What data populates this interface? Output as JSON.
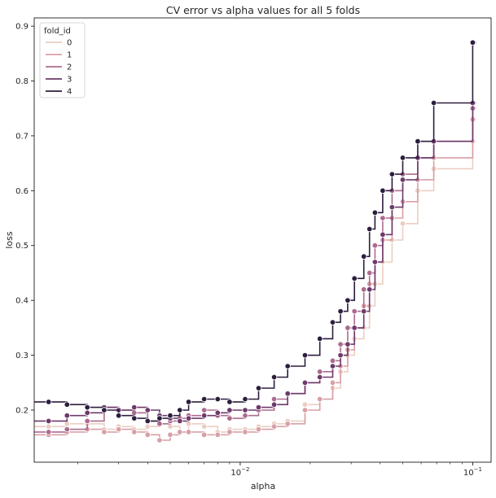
{
  "chart_data": {
    "type": "line",
    "title": "CV error vs alpha values for all 5 folds",
    "xlabel": "alpha",
    "ylabel": "loss",
    "xscale": "log",
    "xlim": [
      0.0013,
      0.12
    ],
    "ylim": [
      0.105,
      0.915
    ],
    "x_ticks": [
      {
        "value": 0.01,
        "base": "10",
        "exp": "−2"
      },
      {
        "value": 0.1,
        "base": "10",
        "exp": "−1"
      }
    ],
    "y_ticks": [
      0.2,
      0.3,
      0.4,
      0.5,
      0.6,
      0.7,
      0.8,
      0.9
    ],
    "grid": false,
    "drawstyle": "steps-post",
    "markers": true,
    "legend": {
      "title": "fold_id",
      "placement": "top-left"
    },
    "series": [
      {
        "name": "0",
        "color": "#ebcec3",
        "x": [
          0.0015,
          0.0018,
          0.0022,
          0.0026,
          0.003,
          0.0035,
          0.004,
          0.0045,
          0.005,
          0.0055,
          0.006,
          0.007,
          0.008,
          0.009,
          0.0105,
          0.012,
          0.014,
          0.016,
          0.019,
          0.022,
          0.025,
          0.027,
          0.029,
          0.031,
          0.034,
          0.036,
          0.038,
          0.041,
          0.045,
          0.05,
          0.058,
          0.068,
          0.1
        ],
        "y": [
          0.17,
          0.175,
          0.175,
          0.165,
          0.17,
          0.165,
          0.17,
          0.175,
          0.17,
          0.16,
          0.175,
          0.17,
          0.16,
          0.165,
          0.165,
          0.17,
          0.175,
          0.18,
          0.21,
          0.22,
          0.24,
          0.27,
          0.3,
          0.33,
          0.35,
          0.39,
          0.43,
          0.47,
          0.51,
          0.54,
          0.6,
          0.64,
          0.69
        ]
      },
      {
        "name": "1",
        "color": "#d89fa6",
        "x": [
          0.0015,
          0.0018,
          0.0022,
          0.0026,
          0.003,
          0.0035,
          0.004,
          0.0045,
          0.005,
          0.0055,
          0.006,
          0.007,
          0.008,
          0.009,
          0.0105,
          0.012,
          0.014,
          0.016,
          0.019,
          0.022,
          0.025,
          0.027,
          0.029,
          0.031,
          0.034,
          0.036,
          0.038,
          0.041,
          0.045,
          0.05,
          0.058,
          0.068,
          0.1
        ],
        "y": [
          0.155,
          0.16,
          0.165,
          0.16,
          0.165,
          0.16,
          0.155,
          0.145,
          0.155,
          0.16,
          0.16,
          0.155,
          0.155,
          0.16,
          0.16,
          0.165,
          0.17,
          0.175,
          0.2,
          0.22,
          0.25,
          0.28,
          0.31,
          0.35,
          0.39,
          0.43,
          0.47,
          0.51,
          0.55,
          0.58,
          0.62,
          0.66,
          0.73
        ]
      },
      {
        "name": "2",
        "color": "#ad6b8f",
        "x": [
          0.0015,
          0.0018,
          0.0022,
          0.0026,
          0.003,
          0.0035,
          0.004,
          0.0045,
          0.005,
          0.0055,
          0.006,
          0.007,
          0.008,
          0.009,
          0.0105,
          0.012,
          0.014,
          0.016,
          0.019,
          0.022,
          0.025,
          0.027,
          0.029,
          0.031,
          0.034,
          0.036,
          0.038,
          0.041,
          0.045,
          0.05,
          0.058,
          0.068,
          0.1
        ],
        "y": [
          0.16,
          0.165,
          0.18,
          0.205,
          0.2,
          0.195,
          0.18,
          0.175,
          0.18,
          0.185,
          0.19,
          0.2,
          0.19,
          0.185,
          0.19,
          0.2,
          0.22,
          0.23,
          0.25,
          0.27,
          0.29,
          0.32,
          0.35,
          0.38,
          0.42,
          0.45,
          0.5,
          0.55,
          0.6,
          0.63,
          0.66,
          0.69,
          0.75
        ]
      },
      {
        "name": "3",
        "color": "#6e3a6b",
        "x": [
          0.0015,
          0.0018,
          0.0022,
          0.0026,
          0.003,
          0.0035,
          0.004,
          0.0045,
          0.005,
          0.0055,
          0.006,
          0.007,
          0.008,
          0.009,
          0.0105,
          0.012,
          0.014,
          0.016,
          0.019,
          0.022,
          0.025,
          0.027,
          0.029,
          0.031,
          0.034,
          0.036,
          0.038,
          0.041,
          0.045,
          0.05,
          0.058,
          0.068,
          0.1
        ],
        "y": [
          0.18,
          0.19,
          0.195,
          0.205,
          0.2,
          0.205,
          0.2,
          0.19,
          0.185,
          0.18,
          0.185,
          0.19,
          0.195,
          0.2,
          0.2,
          0.205,
          0.21,
          0.23,
          0.25,
          0.26,
          0.28,
          0.3,
          0.32,
          0.35,
          0.38,
          0.42,
          0.47,
          0.52,
          0.57,
          0.62,
          0.66,
          0.69,
          0.76
        ]
      },
      {
        "name": "4",
        "color": "#2d1e3e",
        "x": [
          0.0015,
          0.0018,
          0.0022,
          0.0026,
          0.003,
          0.0035,
          0.004,
          0.0045,
          0.005,
          0.0055,
          0.006,
          0.007,
          0.008,
          0.009,
          0.0105,
          0.012,
          0.014,
          0.016,
          0.019,
          0.022,
          0.025,
          0.027,
          0.029,
          0.031,
          0.034,
          0.036,
          0.038,
          0.041,
          0.045,
          0.05,
          0.058,
          0.068,
          0.1
        ],
        "y": [
          0.215,
          0.21,
          0.205,
          0.2,
          0.19,
          0.185,
          0.18,
          0.185,
          0.19,
          0.2,
          0.215,
          0.22,
          0.22,
          0.215,
          0.22,
          0.24,
          0.26,
          0.28,
          0.3,
          0.33,
          0.36,
          0.38,
          0.4,
          0.44,
          0.48,
          0.53,
          0.56,
          0.6,
          0.63,
          0.66,
          0.69,
          0.76,
          0.87
        ]
      }
    ]
  }
}
